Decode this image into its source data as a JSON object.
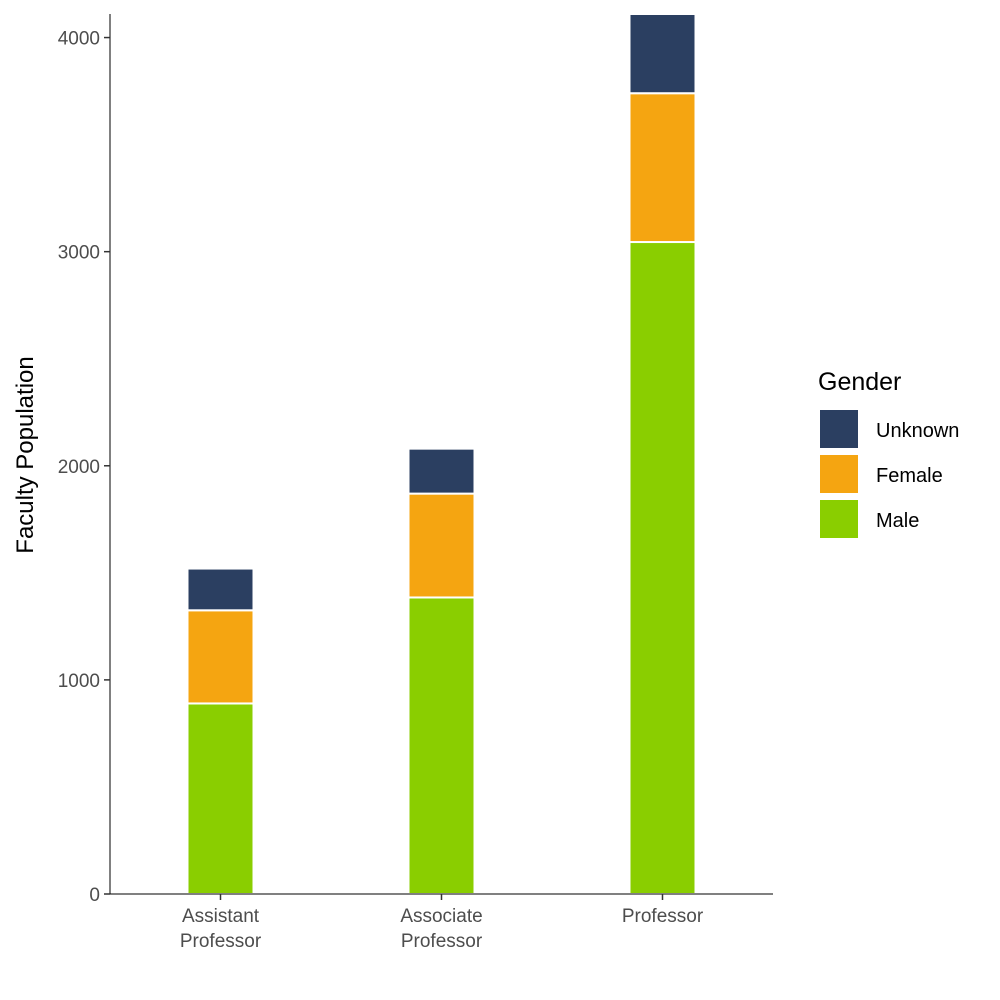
{
  "chart_data": {
    "type": "bar",
    "stacked": true,
    "categories": [
      [
        "Assistant",
        "Professor"
      ],
      [
        "Associate",
        "Professor"
      ],
      [
        "Professor"
      ]
    ],
    "series": [
      {
        "name": "Male",
        "color": "#8ace00",
        "values": [
          890,
          1385,
          3045
        ]
      },
      {
        "name": "Female",
        "color": "#f5a511",
        "values": [
          435,
          485,
          695
        ]
      },
      {
        "name": "Unknown",
        "color": "#2b3f61",
        "values": [
          195,
          210,
          370
        ]
      }
    ],
    "ylabel": "Faculty Population",
    "xlabel": "",
    "ylim": [
      0,
      4110
    ],
    "yticks": [
      0,
      1000,
      2000,
      3000,
      4000
    ],
    "ytick_labels": [
      "0",
      "1000",
      "2000",
      "3000",
      "4000"
    ],
    "grid": false,
    "legend": {
      "title": "Gender",
      "position": "right",
      "order": [
        "Unknown",
        "Female",
        "Male"
      ]
    }
  }
}
